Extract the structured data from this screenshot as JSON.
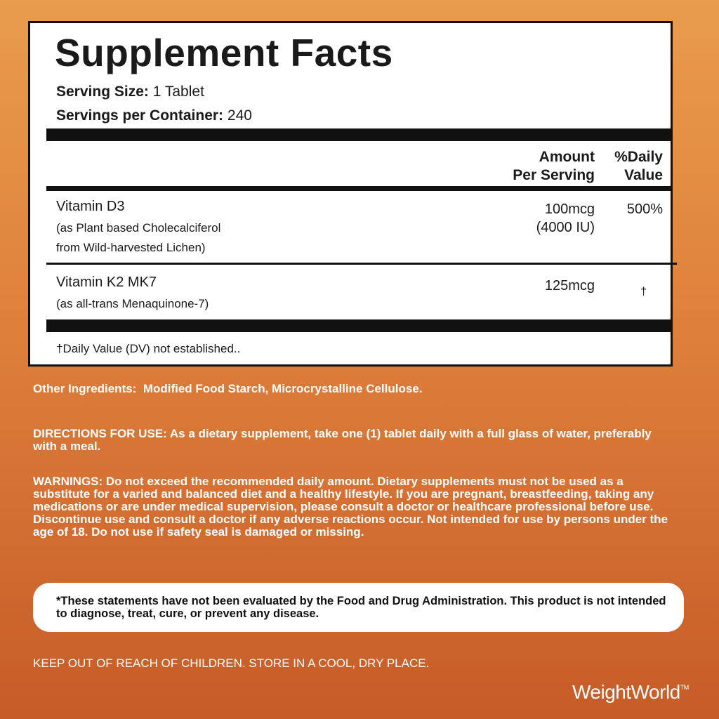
{
  "label": {
    "title": "Supplement Facts",
    "serving_size": {
      "label": "Serving Size:",
      "value": "1 Tablet"
    },
    "servings_per_container": {
      "label": "Servings per Container:",
      "value": "240"
    },
    "columns": {
      "amount": [
        "Amount",
        "Per Serving"
      ],
      "daily_value": [
        "%Daily",
        "Value"
      ]
    },
    "rows": [
      {
        "name": "Vitamin D3",
        "description": [
          "(as Plant based Cholecalciferol",
          "from Wild-harvested Lichen)"
        ],
        "amount": [
          "100mcg",
          "(4000 IU)"
        ],
        "daily_value": "500%"
      },
      {
        "name": "Vitamin K2 MK7",
        "description": [
          "(as all-trans Menaquinone-7)"
        ],
        "amount": [
          "125mcg"
        ],
        "daily_value": "†"
      }
    ],
    "footnote": "†Daily Value (DV) not established.."
  },
  "other_ingredients": {
    "label": "Other Ingredients:",
    "text": "Modified Food Starch, Microcrystalline Cellulose."
  },
  "directions": {
    "label": "DIRECTIONS FOR USE:",
    "text": "As a dietary supplement, take one (1) tablet daily with a full glass of water, preferably with a meal."
  },
  "warnings": {
    "label": "WARNINGS:",
    "text": "Do not exceed the recommended daily amount. Dietary supplements must not be used as a substitute for a varied and balanced diet and a healthy lifestyle. If you are pregnant, breastfeeding, taking any medications or are under medical supervision, please consult a doctor or healthcare professional before use. Discontinue use and consult a doctor if any adverse reactions occur. Not intended for use by persons under the age of 18. Do not use if safety seal is damaged or missing."
  },
  "disclaimer": "*These statements have not been evaluated by the Food and Drug Administration. This product is not intended to diagnose, treat, cure, or prevent any disease.",
  "storage": "KEEP OUT OF REACH OF CHILDREN. STORE IN A COOL, DRY PLACE.",
  "brand": {
    "name": "WeightWorld",
    "trademark": "TM"
  }
}
